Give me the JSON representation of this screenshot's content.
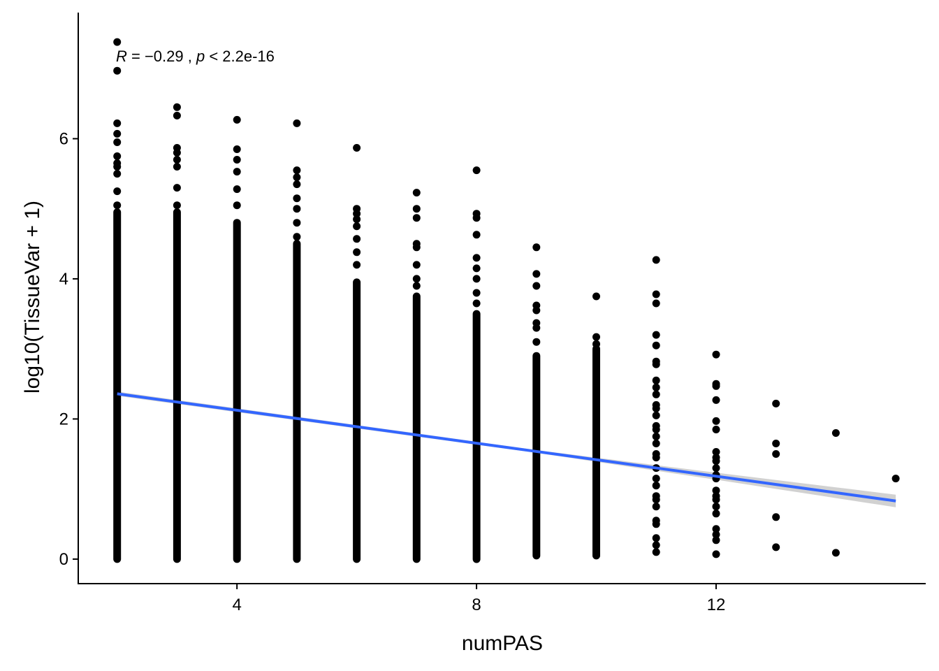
{
  "chart_data": {
    "type": "scatter",
    "title": "",
    "xlabel": "numPAS",
    "ylabel": "log10(TissueVar + 1)",
    "xlim": [
      1.35,
      15.5
    ],
    "ylim": [
      -0.35,
      7.8
    ],
    "x_ticks": [
      4,
      8,
      12
    ],
    "y_ticks": [
      0,
      2,
      4,
      6
    ],
    "x_tick_labels": [
      "4",
      "8",
      "12"
    ],
    "y_tick_labels": [
      "0",
      "2",
      "4",
      "6"
    ],
    "grid": false,
    "annotation": {
      "r_symbol": "R",
      "r_text": " = −0.29 , ",
      "p_symbol": "p",
      "p_text": " < 2.2e-16"
    },
    "point_color": "#000000",
    "regression": {
      "color": "#3366FF",
      "ci_color": "#CCCCCC",
      "points": [
        [
          2,
          2.36
        ],
        [
          15,
          0.83
        ]
      ],
      "ci_halfwidth": [
        [
          2,
          0.03
        ],
        [
          9,
          0.02
        ],
        [
          12,
          0.05
        ],
        [
          15,
          0.09
        ]
      ]
    },
    "series": [
      {
        "x": 2,
        "ymin": 0.0,
        "ymax": 4.95,
        "outliers": [
          5.05,
          5.25,
          5.5,
          5.6,
          5.65,
          5.75,
          5.95,
          6.07,
          6.22,
          6.97,
          7.38
        ]
      },
      {
        "x": 3,
        "ymin": 0.0,
        "ymax": 4.95,
        "outliers": [
          5.05,
          5.3,
          5.6,
          5.7,
          5.8,
          5.87,
          6.33,
          6.45
        ]
      },
      {
        "x": 4,
        "ymin": 0.0,
        "ymax": 4.8,
        "outliers": [
          5.05,
          5.28,
          5.53,
          5.7,
          5.85,
          6.27
        ]
      },
      {
        "x": 5,
        "ymin": 0.0,
        "ymax": 4.5,
        "outliers": [
          4.6,
          4.8,
          5.0,
          5.15,
          5.35,
          5.45,
          5.55,
          6.22
        ]
      },
      {
        "x": 6,
        "ymin": 0.0,
        "ymax": 3.95,
        "outliers": [
          4.2,
          4.38,
          4.57,
          4.75,
          4.85,
          4.93,
          5.0,
          5.87
        ]
      },
      {
        "x": 7,
        "ymin": 0.0,
        "ymax": 3.75,
        "outliers": [
          3.9,
          4.0,
          4.2,
          4.45,
          4.5,
          4.87,
          5.0,
          5.23
        ]
      },
      {
        "x": 8,
        "ymin": 0.0,
        "ymax": 3.5,
        "outliers": [
          3.65,
          3.8,
          4.0,
          4.15,
          4.3,
          4.63,
          4.87,
          4.93,
          5.55
        ]
      },
      {
        "x": 9,
        "ymin": 0.05,
        "ymax": 2.9,
        "outliers": [
          3.1,
          3.3,
          3.37,
          3.55,
          3.62,
          3.9,
          4.07,
          4.45
        ]
      },
      {
        "x": 10,
        "ymin": 0.05,
        "ymax": 3.0,
        "outliers": [
          3.07,
          3.17,
          3.75
        ]
      },
      {
        "x": 11,
        "ymin": null,
        "ymax": null,
        "outliers": [
          0.1,
          0.2,
          0.3,
          0.5,
          0.55,
          0.75,
          0.85,
          0.9,
          1.05,
          1.15,
          1.3,
          1.45,
          1.5,
          1.65,
          1.75,
          1.85,
          1.9,
          2.05,
          2.15,
          2.2,
          2.35,
          2.45,
          2.55,
          2.78,
          2.82,
          3.05,
          3.2,
          3.65,
          3.78,
          4.27
        ]
      },
      {
        "x": 12,
        "ymin": null,
        "ymax": null,
        "outliers": [
          0.07,
          0.27,
          0.35,
          0.43,
          0.65,
          0.75,
          0.85,
          0.9,
          0.98,
          1.15,
          1.2,
          1.3,
          1.4,
          1.45,
          1.53,
          1.85,
          1.97,
          2.27,
          2.47,
          2.5,
          2.92
        ]
      },
      {
        "x": 13,
        "ymin": null,
        "ymax": null,
        "outliers": [
          0.17,
          0.6,
          1.5,
          1.65,
          2.22
        ]
      },
      {
        "x": 14,
        "ymin": null,
        "ymax": null,
        "outliers": [
          0.09,
          1.8
        ]
      },
      {
        "x": 15,
        "ymin": null,
        "ymax": null,
        "outliers": [
          1.15
        ]
      }
    ]
  }
}
